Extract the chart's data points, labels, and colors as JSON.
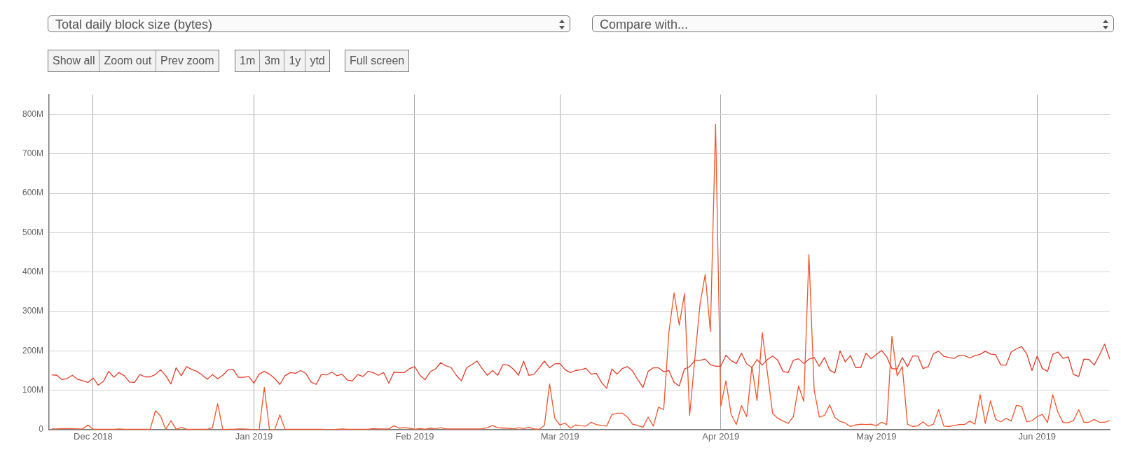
{
  "chart_data": {
    "type": "line",
    "title": "Total daily block size (bytes)",
    "annotations": [
      "Compare with...",
      "Show all",
      "Zoom out",
      "Prev zoom",
      "1m",
      "3m",
      "1y",
      "ytd",
      "Full screen"
    ],
    "x": [
      "2018-11-23",
      "2018-11-24",
      "2018-11-25",
      "2018-11-26",
      "2018-11-27",
      "2018-11-28",
      "2018-11-29",
      "2018-11-30",
      "2018-12-01",
      "2018-12-02",
      "2018-12-03",
      "2018-12-04",
      "2018-12-05",
      "2018-12-06",
      "2018-12-07",
      "2018-12-08",
      "2018-12-09",
      "2018-12-10",
      "2018-12-11",
      "2018-12-12",
      "2018-12-13",
      "2018-12-14",
      "2018-12-15",
      "2018-12-16",
      "2018-12-17",
      "2018-12-18",
      "2018-12-19",
      "2018-12-20",
      "2018-12-21",
      "2018-12-22",
      "2018-12-23",
      "2018-12-24",
      "2018-12-25",
      "2018-12-26",
      "2018-12-27",
      "2018-12-28",
      "2018-12-29",
      "2018-12-30",
      "2018-12-31",
      "2019-01-01",
      "2019-01-02",
      "2019-01-03",
      "2019-01-04",
      "2019-01-05",
      "2019-01-06",
      "2019-01-07",
      "2019-01-08",
      "2019-01-09",
      "2019-01-10",
      "2019-01-11",
      "2019-01-12",
      "2019-01-13",
      "2019-01-14",
      "2019-01-15",
      "2019-01-16",
      "2019-01-17",
      "2019-01-18",
      "2019-01-19",
      "2019-01-20",
      "2019-01-21",
      "2019-01-22",
      "2019-01-23",
      "2019-01-24",
      "2019-01-25",
      "2019-01-26",
      "2019-01-27",
      "2019-01-28",
      "2019-01-29",
      "2019-01-30",
      "2019-01-31",
      "2019-02-01",
      "2019-02-02",
      "2019-02-03",
      "2019-02-04",
      "2019-02-05",
      "2019-02-06",
      "2019-02-07",
      "2019-02-08",
      "2019-02-09",
      "2019-02-10",
      "2019-02-11",
      "2019-02-12",
      "2019-02-13",
      "2019-02-14",
      "2019-02-15",
      "2019-02-16",
      "2019-02-17",
      "2019-02-18",
      "2019-02-19",
      "2019-02-20",
      "2019-02-21",
      "2019-02-22",
      "2019-02-23",
      "2019-02-24",
      "2019-02-25",
      "2019-02-26",
      "2019-02-27",
      "2019-02-28",
      "2019-03-01",
      "2019-03-02",
      "2019-03-03",
      "2019-03-04",
      "2019-03-05",
      "2019-03-06",
      "2019-03-07",
      "2019-03-08",
      "2019-03-09",
      "2019-03-10",
      "2019-03-11",
      "2019-03-12",
      "2019-03-13",
      "2019-03-14",
      "2019-03-15",
      "2019-03-16",
      "2019-03-17",
      "2019-03-18",
      "2019-03-19",
      "2019-03-20",
      "2019-03-21",
      "2019-03-22",
      "2019-03-23",
      "2019-03-24",
      "2019-03-25",
      "2019-03-26",
      "2019-03-27",
      "2019-03-28",
      "2019-03-29",
      "2019-03-30",
      "2019-03-31",
      "2019-04-01",
      "2019-04-02",
      "2019-04-03",
      "2019-04-04",
      "2019-04-05",
      "2019-04-06",
      "2019-04-07",
      "2019-04-08",
      "2019-04-09",
      "2019-04-10",
      "2019-04-11",
      "2019-04-12",
      "2019-04-13",
      "2019-04-14",
      "2019-04-15",
      "2019-04-16",
      "2019-04-17",
      "2019-04-18",
      "2019-04-19",
      "2019-04-20",
      "2019-04-21",
      "2019-04-22",
      "2019-04-23",
      "2019-04-24",
      "2019-04-25",
      "2019-04-26",
      "2019-04-27",
      "2019-04-28",
      "2019-04-29",
      "2019-04-30",
      "2019-05-01",
      "2019-05-02",
      "2019-05-03",
      "2019-05-04",
      "2019-05-05",
      "2019-05-06",
      "2019-05-07",
      "2019-05-08",
      "2019-05-09",
      "2019-05-10",
      "2019-05-11",
      "2019-05-12",
      "2019-05-13",
      "2019-05-14",
      "2019-05-15",
      "2019-05-16",
      "2019-05-17",
      "2019-05-18",
      "2019-05-19",
      "2019-05-20",
      "2019-05-21",
      "2019-05-22",
      "2019-05-23",
      "2019-05-24",
      "2019-05-25",
      "2019-05-26",
      "2019-05-27",
      "2019-05-28",
      "2019-05-29",
      "2019-05-30",
      "2019-05-31",
      "2019-06-01",
      "2019-06-02",
      "2019-06-03",
      "2019-06-04",
      "2019-06-05",
      "2019-06-06",
      "2019-06-07",
      "2019-06-08",
      "2019-06-09",
      "2019-06-10",
      "2019-06-11",
      "2019-06-12",
      "2019-06-13",
      "2019-06-14",
      "2019-06-15"
    ],
    "series": [
      {
        "color": "#e23d28",
        "values": [
          139,
          138,
          127,
          130,
          138,
          128,
          124,
          120,
          131,
          113,
          123,
          148,
          133,
          145,
          137,
          121,
          120,
          140,
          134,
          134,
          140,
          152,
          137,
          116,
          157,
          137,
          160,
          153,
          148,
          139,
          128,
          140,
          129,
          138,
          152,
          153,
          133,
          133,
          135,
          118,
          141,
          148,
          141,
          130,
          115,
          137,
          145,
          143,
          150,
          143,
          121,
          115,
          140,
          139,
          146,
          137,
          141,
          126,
          124,
          140,
          135,
          148,
          145,
          138,
          145,
          118,
          146,
          145,
          145,
          155,
          160,
          138,
          127,
          147,
          154,
          170,
          162,
          158,
          138,
          124,
          157,
          165,
          174,
          155,
          138,
          150,
          138,
          165,
          164,
          154,
          138,
          174,
          138,
          141,
          157,
          174,
          157,
          167,
          168,
          152,
          145,
          150,
          152,
          156,
          141,
          143,
          120,
          105,
          154,
          141,
          155,
          160,
          149,
          127,
          107,
          148,
          157,
          157,
          147,
          150,
          120,
          111,
          154,
          160,
          176,
          176,
          179,
          165,
          161,
          161,
          189,
          175,
          168,
          194,
          167,
          158,
          178,
          164,
          178,
          187,
          176,
          148,
          145,
          176,
          180,
          168,
          179,
          183,
          161,
          183,
          151,
          144,
          200,
          172,
          188,
          158,
          158,
          194,
          180,
          191,
          201,
          185,
          155,
          154,
          183,
          160,
          187,
          187,
          155,
          160,
          193,
          199,
          186,
          183,
          181,
          189,
          188,
          182,
          188,
          191,
          199,
          192,
          190,
          164,
          164,
          197,
          205,
          211,
          192,
          150,
          187,
          155,
          148,
          191,
          197,
          181,
          185,
          140,
          135,
          179,
          178,
          164,
          189,
          217,
          179
        ]
      },
      {
        "color": "#f2552c",
        "values": [
          2,
          2,
          3,
          3,
          3,
          2,
          2,
          12,
          1,
          1,
          1,
          1,
          1,
          2,
          1,
          1,
          1,
          1,
          1,
          1,
          48,
          35,
          1,
          23,
          1,
          6,
          1,
          1,
          1,
          1,
          1,
          5,
          66,
          0,
          1,
          1,
          2,
          2,
          1,
          0,
          0,
          107,
          0,
          0,
          38,
          1,
          1,
          1,
          1,
          1,
          1,
          1,
          1,
          0,
          0,
          1,
          2,
          1,
          1,
          1,
          1,
          1,
          3,
          2,
          2,
          2,
          10,
          4,
          5,
          4,
          1,
          3,
          1,
          4,
          2,
          5,
          2,
          2,
          2,
          2,
          2,
          2,
          2,
          2,
          5,
          11,
          5,
          4,
          4,
          2,
          5,
          3,
          6,
          2,
          1,
          11,
          116,
          29,
          12,
          17,
          4,
          12,
          10,
          9,
          19,
          13,
          11,
          9,
          38,
          42,
          42,
          32,
          14,
          11,
          6,
          32,
          9,
          57,
          51,
          247,
          347,
          265,
          345,
          36,
          180,
          318,
          394,
          249,
          775,
          60,
          124,
          39,
          13,
          61,
          33,
          160,
          74,
          246,
          144,
          41,
          29,
          22,
          16,
          33,
          111,
          72,
          444,
          101,
          32,
          36,
          63,
          31,
          21,
          17,
          8,
          12,
          14,
          13,
          14,
          10,
          19,
          13,
          237,
          137,
          160,
          14,
          8,
          10,
          20,
          9,
          14,
          51,
          9,
          8,
          11,
          13,
          13,
          22,
          14,
          89,
          16,
          73,
          26,
          20,
          29,
          22,
          62,
          59,
          20,
          23,
          33,
          39,
          18,
          89,
          44,
          18,
          18,
          23,
          51,
          19,
          19,
          26,
          19,
          19,
          23
        ]
      }
    ],
    "xlim": [
      "2018-11-22T12:00",
      "2019-06-15"
    ],
    "xticks": [
      {
        "value": "2018-12-01",
        "label": "Dec 2018"
      },
      {
        "value": "2019-01-01",
        "label": "Jan 2019"
      },
      {
        "value": "2019-02-01",
        "label": "Feb 2019"
      },
      {
        "value": "2019-03-01",
        "label": "Mar 2019"
      },
      {
        "value": "2019-04-01",
        "label": "Apr 2019"
      },
      {
        "value": "2019-05-01",
        "label": "May 2019"
      },
      {
        "value": "2019-06-01",
        "label": "Jun 2019"
      }
    ],
    "ylim": [
      0,
      850
    ],
    "yticks": [
      0,
      {
        "value": 100,
        "label": "100M"
      },
      {
        "value": 200,
        "label": "200M"
      },
      {
        "value": 300,
        "label": "300M"
      },
      {
        "value": 400,
        "label": "400M"
      },
      {
        "value": 500,
        "label": "500M"
      },
      {
        "value": 600,
        "label": "600M"
      },
      {
        "value": 700,
        "label": "700M"
      },
      {
        "value": 800,
        "label": "800M"
      }
    ],
    "grid": true,
    "legend": false,
    "marker": "none",
    "line_style": "solid"
  }
}
